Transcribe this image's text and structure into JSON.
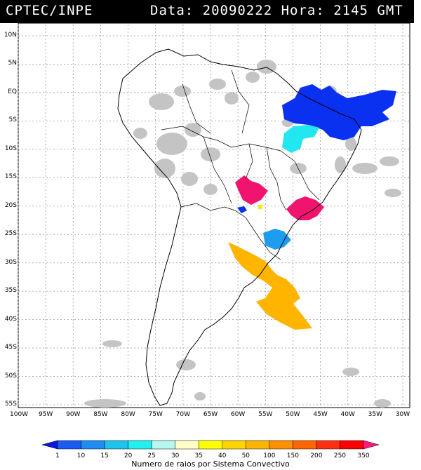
{
  "header": {
    "source": "CPTEC/INPE",
    "datetime": "Data: 20090222 Hora: 2145 GMT"
  },
  "axes": {
    "lat_labels": [
      "10N",
      "5N",
      "EQ",
      "5S",
      "10S",
      "15S",
      "20S",
      "25S",
      "30S",
      "35S",
      "40S",
      "45S",
      "50S",
      "55S"
    ],
    "lon_labels": [
      "100W",
      "95W",
      "90W",
      "85W",
      "80W",
      "75W",
      "70W",
      "65W",
      "60W",
      "55W",
      "50W",
      "45W",
      "40W",
      "35W",
      "30W"
    ],
    "lat_values": [
      10,
      5,
      0,
      -5,
      -10,
      -15,
      -20,
      -25,
      -30,
      -35,
      -40,
      -45,
      -50,
      -55
    ],
    "lon_values": [
      -100,
      -95,
      -90,
      -85,
      -80,
      -75,
      -70,
      -65,
      -60,
      -55,
      -50,
      -45,
      -40,
      -35,
      -30
    ]
  },
  "colorbar": {
    "title": "Numero de raios por Sistema Convectivo",
    "tick_labels": [
      "1",
      "10",
      "15",
      "20",
      "25",
      "30",
      "35",
      "40",
      "50",
      "100",
      "150",
      "200",
      "250",
      "350"
    ],
    "colors": [
      "#0a18e6",
      "#1a5cf0",
      "#1e8cf0",
      "#1ec3ee",
      "#22f0f0",
      "#b4f8f0",
      "#ffffc8",
      "#ffff00",
      "#ffd400",
      "#ffb400",
      "#ff9000",
      "#ff6600",
      "#ff3010",
      "#ff0000",
      "#ff1a80"
    ]
  },
  "systems": [
    {
      "name": "blue-north",
      "color": "#0a30f0"
    },
    {
      "name": "cyan-central",
      "color": "#22e6f0"
    },
    {
      "name": "magenta-west",
      "color": "#f0146e"
    },
    {
      "name": "magenta-east",
      "color": "#f0146e"
    },
    {
      "name": "orange-south",
      "color": "#ffb400"
    },
    {
      "name": "lightblue-south",
      "color": "#1e9cf0"
    }
  ]
}
